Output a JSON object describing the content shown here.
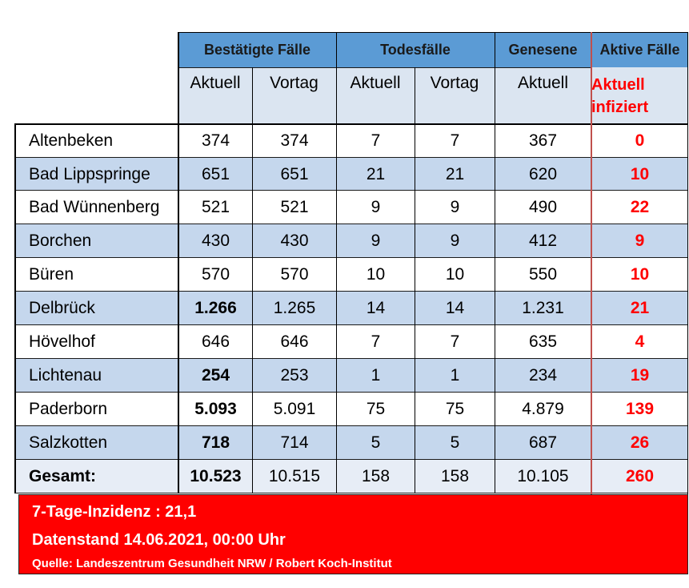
{
  "header": {
    "groups": [
      "Bestätigte Fälle",
      "Todesfälle",
      "Genesene",
      "Aktive Fälle"
    ],
    "sub": [
      "Aktuell",
      "Vortag",
      "Aktuell",
      "Vortag",
      "Aktuell"
    ],
    "active_sub_line1": "Aktuell",
    "active_sub_line2": "infiziert"
  },
  "rows": [
    {
      "name": "Altenbeken",
      "c_now": "374",
      "c_prev": "374",
      "d_now": "7",
      "d_prev": "7",
      "rec": "367",
      "active": "0",
      "c_bold": false
    },
    {
      "name": "Bad Lippspringe",
      "c_now": "651",
      "c_prev": "651",
      "d_now": "21",
      "d_prev": "21",
      "rec": "620",
      "active": "10",
      "c_bold": false
    },
    {
      "name": "Bad Wünnenberg",
      "c_now": "521",
      "c_prev": "521",
      "d_now": "9",
      "d_prev": "9",
      "rec": "490",
      "active": "22",
      "c_bold": false
    },
    {
      "name": "Borchen",
      "c_now": "430",
      "c_prev": "430",
      "d_now": "9",
      "d_prev": "9",
      "rec": "412",
      "active": "9",
      "c_bold": false
    },
    {
      "name": "Büren",
      "c_now": "570",
      "c_prev": "570",
      "d_now": "10",
      "d_prev": "10",
      "rec": "550",
      "active": "10",
      "c_bold": false
    },
    {
      "name": "Delbrück",
      "c_now": "1.266",
      "c_prev": "1.265",
      "d_now": "14",
      "d_prev": "14",
      "rec": "1.231",
      "active": "21",
      "c_bold": true
    },
    {
      "name": "Hövelhof",
      "c_now": "646",
      "c_prev": "646",
      "d_now": "7",
      "d_prev": "7",
      "rec": "635",
      "active": "4",
      "c_bold": false
    },
    {
      "name": "Lichtenau",
      "c_now": "254",
      "c_prev": "253",
      "d_now": "1",
      "d_prev": "1",
      "rec": "234",
      "active": "19",
      "c_bold": true
    },
    {
      "name": "Paderborn",
      "c_now": "5.093",
      "c_prev": "5.091",
      "d_now": "75",
      "d_prev": "75",
      "rec": "4.879",
      "active": "139",
      "c_bold": true
    },
    {
      "name": "Salzkotten",
      "c_now": "718",
      "c_prev": "714",
      "d_now": "5",
      "d_prev": "5",
      "rec": "687",
      "active": "26",
      "c_bold": true
    },
    {
      "name": "Gesamt:",
      "c_now": "10.523",
      "c_prev": "10.515",
      "d_now": "158",
      "d_prev": "158",
      "rec": "10.105",
      "active": "260",
      "c_bold": true,
      "total": true
    }
  ],
  "footer": {
    "incidence": "7-Tage-Inzidenz : 21,1",
    "date": "Datenstand 14.06.2021, 00:00 Uhr",
    "source": "Quelle: Landeszentrum Gesundheit NRW / Robert Koch-Institut"
  }
}
